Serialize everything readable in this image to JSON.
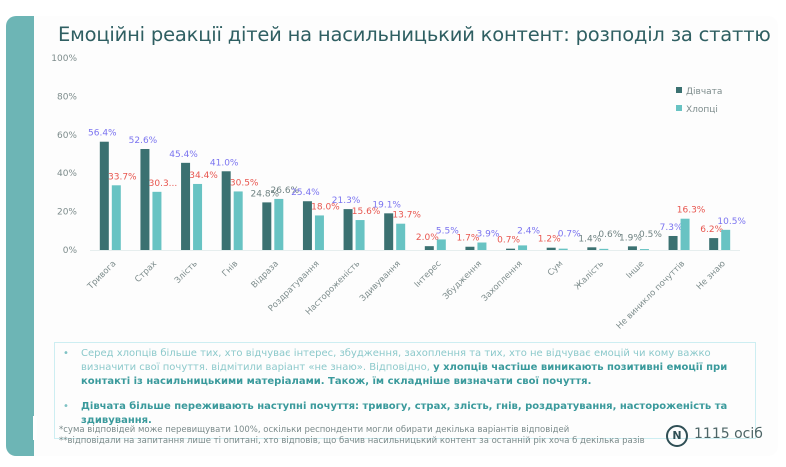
{
  "title": "Емоційні реакції дітей на насильницький контент: розподіл за статтю",
  "colors": {
    "girls": "#3b7171",
    "boys": "#68c3c3",
    "label_blue": "#7b74f0",
    "label_red": "#e8564f",
    "label_gray": "#6f8282",
    "accent": "#6db5b5"
  },
  "chart_data": {
    "type": "bar",
    "title": "Емоційні реакції дітей на насильницький контент: розподіл за статтю",
    "xlabel": "",
    "ylabel": "",
    "ylim": [
      0,
      100
    ],
    "yticks": [
      "0%",
      "20%",
      "40%",
      "60%",
      "80%",
      "100%"
    ],
    "legend_position": "top-right",
    "grid": false,
    "categories": [
      "Тривога",
      "Страх",
      "Злість",
      "Гнів",
      "Відраза",
      "Роздратування",
      "Настороженість",
      "Здивування",
      "Інтерес",
      "Збудження",
      "Захоплення",
      "Сум",
      "Жалість",
      "Інше",
      "Не виникло почуттів",
      "Не знаю"
    ],
    "series": [
      {
        "name": "Дівчата",
        "values": [
          56.4,
          52.6,
          45.4,
          41.0,
          24.8,
          25.4,
          21.3,
          19.1,
          2.0,
          1.7,
          0.7,
          1.2,
          1.4,
          1.9,
          7.3,
          6.2
        ],
        "labels": [
          "56.4%",
          "52.6%",
          "45.4%",
          "41.0%",
          "24.8%",
          "25.4%",
          "21.3%",
          "19.1%",
          "2.0%",
          "1.7%",
          "0.7%",
          "1.2%",
          "1.4%",
          "1.9%",
          "7.3%",
          "6.2%"
        ],
        "label_colors": [
          "blue",
          "blue",
          "blue",
          "blue",
          "gray",
          "blue",
          "blue",
          "blue",
          "red",
          "red",
          "red",
          "red",
          "gray",
          "gray",
          "blue",
          "red"
        ]
      },
      {
        "name": "Хлопці",
        "values": [
          33.7,
          30.3,
          34.4,
          30.5,
          26.6,
          18.0,
          15.6,
          13.7,
          5.5,
          3.9,
          2.4,
          0.7,
          0.6,
          0.5,
          16.3,
          10.5
        ],
        "labels": [
          "33.7%",
          "30.3...",
          "34.4%",
          "30.5%",
          "26.6%",
          "18.0%",
          "15.6%",
          "13.7%",
          "5.5%",
          "3.9%",
          "2.4%",
          "0.7%",
          "0.6%",
          "0.5%",
          "16.3%",
          "10.5%"
        ],
        "label_colors": [
          "red",
          "red",
          "red",
          "red",
          "gray",
          "red",
          "red",
          "red",
          "blue",
          "blue",
          "blue",
          "blue",
          "gray",
          "gray",
          "red",
          "blue"
        ]
      }
    ]
  },
  "notes": {
    "bullet": "•",
    "b1_plain": "Серед хлопців більше тих, хто відчуває інтерес, збудження, захоплення та тих, хто не відчуває емоцій чи кому важко визначити свої почуття. відмітили варіант «не знаю». Відповідно, ",
    "b1_bold": "у хлопців частіше виникають позитивні емоції при контакті із насильницькими матеріалами. Також, їм складніше визначати свої почуття.",
    "b2": "Дівчата більше переживають наступні почуття: тривогу, страх, злість, гнів, роздратування, настороженість та здивування.",
    "foot1": "*сума відповідей може перевищувати 100%, оскільки респонденти могли обирати декілька варіантів відповідей",
    "foot2": "**відповідали на запитання лише ті опитані, хто відповів, що бачив насильницький контент за останній рік хоча б декілька разів",
    "n_symbol": "N",
    "n_label": "1115 осіб"
  }
}
